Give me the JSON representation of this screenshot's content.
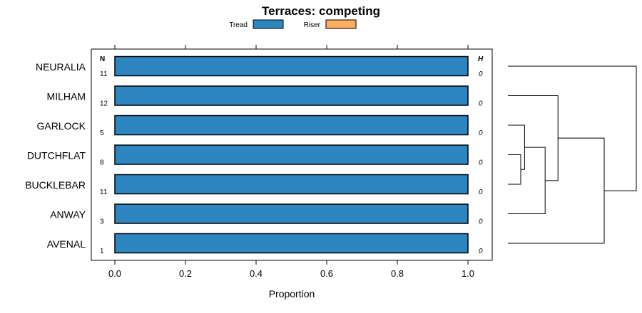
{
  "chart_data": {
    "type": "bar",
    "orientation": "horizontal",
    "stacked": true,
    "title": "Terraces: competing",
    "xlabel": "Proportion",
    "ylabel": "",
    "xlim": [
      -0.07,
      1.07
    ],
    "x_ticks": [
      0.0,
      0.2,
      0.4,
      0.6,
      0.8,
      1.0
    ],
    "x_tick_labels": [
      "0.0",
      "0.2",
      "0.4",
      "0.6",
      "0.8",
      "1.0"
    ],
    "legend_position": "top",
    "categories": [
      "NEURALIA",
      "MILHAM",
      "GARLOCK",
      "DUTCHFLAT",
      "BUCKLEBAR",
      "ANWAY",
      "AVENAL"
    ],
    "series": [
      {
        "name": "Tread",
        "color": "#2e86c1",
        "values": [
          1,
          1,
          1,
          1,
          1,
          1,
          1
        ]
      },
      {
        "name": "Riser",
        "color": "#ffad60",
        "values": [
          0,
          0,
          0,
          0,
          0,
          0,
          0
        ]
      }
    ],
    "n_header": "N",
    "n_values": [
      "11",
      "12",
      "5",
      "8",
      "11",
      "3",
      "1"
    ],
    "h_header": "H",
    "h_values": [
      "0",
      "0",
      "0",
      "0",
      "0",
      "0",
      "0"
    ],
    "dendrogram": {
      "leaf_order": [
        "NEURALIA",
        "MILHAM",
        "GARLOCK",
        "DUTCHFLAT",
        "BUCKLEBAR",
        "ANWAY",
        "AVENAL"
      ],
      "merges": [
        {
          "a": "DUTCHFLAT",
          "b": "BUCKLEBAR",
          "height": 0.1
        },
        {
          "a": "GARLOCK",
          "b": "m0",
          "height": 0.13
        },
        {
          "a": "m1",
          "b": "ANWAY",
          "height": 0.29
        },
        {
          "a": "MILHAM",
          "b": "m2",
          "height": 0.39
        },
        {
          "a": "m3",
          "b": "AVENAL",
          "height": 0.75
        },
        {
          "a": "NEURALIA",
          "b": "m4",
          "height": 1.0
        }
      ]
    }
  }
}
